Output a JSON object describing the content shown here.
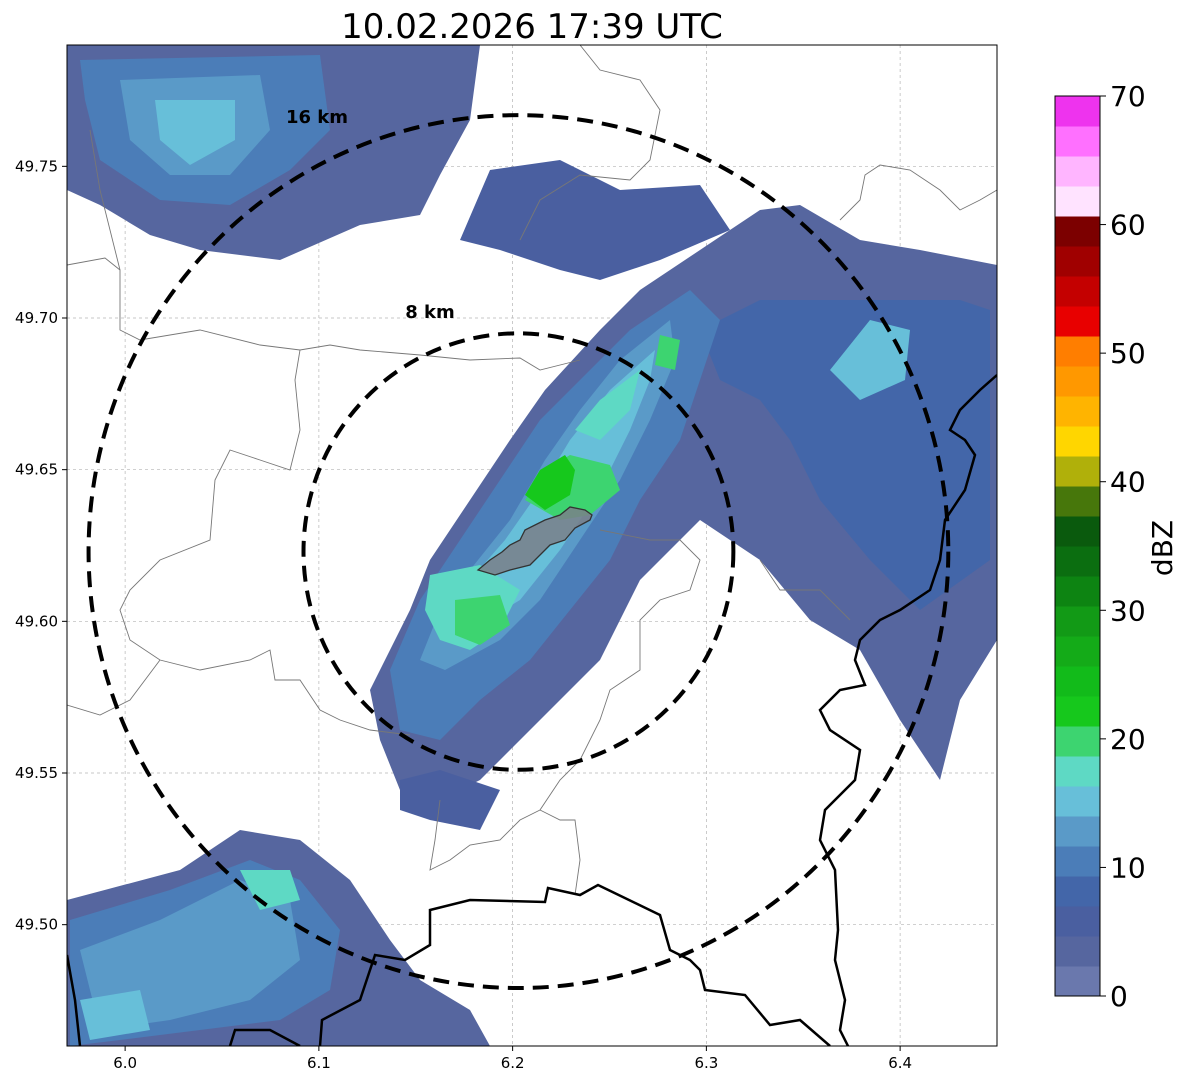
{
  "title": "10.02.2026 17:39 UTC",
  "x_ticks": [
    "6.0",
    "6.1",
    "6.2",
    "6.3",
    "6.4"
  ],
  "y_ticks": [
    "49.75",
    "49.70",
    "49.65",
    "49.60",
    "49.55",
    "49.50"
  ],
  "ring_labels": {
    "outer": "16 km",
    "inner": "8 km"
  },
  "colorbar": {
    "label": "dBZ",
    "ticks": [
      "0",
      "10",
      "20",
      "30",
      "40",
      "50",
      "60",
      "70"
    ],
    "colors": [
      "#6a78ad",
      "#56669f",
      "#4a5fa0",
      "#4366a9",
      "#4b7db8",
      "#5a9ac8",
      "#67bfd9",
      "#5ed9c4",
      "#3dd470",
      "#16c81c",
      "#12bb1a",
      "#14ab18",
      "#129a16",
      "#0d8412",
      "#0b6e10",
      "#0a5a0d",
      "#47770b",
      "#b0b00a",
      "#ffd600",
      "#ffb400",
      "#ff9800",
      "#ff7e00",
      "#e80000",
      "#c40000",
      "#a00000",
      "#7c0000",
      "#ffe3ff",
      "#ffb5ff",
      "#ff70ff",
      "#ee33ee"
    ]
  },
  "map": {
    "lon_range": [
      5.97,
      6.45
    ],
    "lat_range": [
      49.46,
      49.79
    ],
    "center": {
      "lon": 6.203,
      "lat": 49.623
    },
    "rings_km": [
      8,
      16
    ]
  }
}
